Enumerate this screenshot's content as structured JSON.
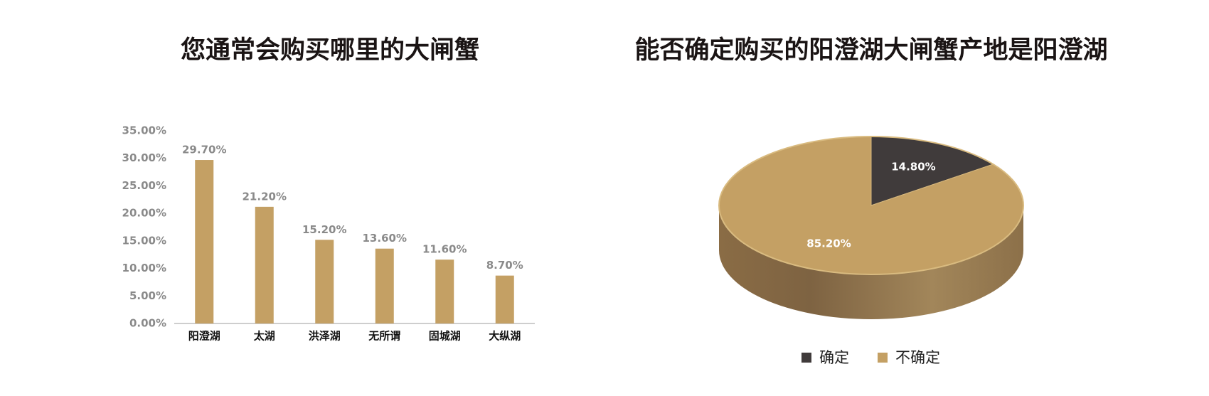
{
  "chart_data": [
    {
      "type": "bar",
      "title": "您通常会购买哪里的大闸蟹",
      "categories": [
        "阳澄湖",
        "太湖",
        "洪泽湖",
        "无所谓",
        "固城湖",
        "大纵湖"
      ],
      "values": [
        29.7,
        21.2,
        15.2,
        13.6,
        11.6,
        8.7
      ],
      "value_labels": [
        "29.70%",
        "21.20%",
        "15.20%",
        "13.60%",
        "11.60%",
        "8.70%"
      ],
      "color": "#c4a064",
      "ylim": [
        0,
        35
      ],
      "yticks": [
        {
          "value": 0,
          "label": "0.00%"
        },
        {
          "value": 5,
          "label": "5.00%"
        },
        {
          "value": 10,
          "label": "10.00%"
        },
        {
          "value": 15,
          "label": "15.00%"
        },
        {
          "value": 20,
          "label": "20.00%"
        },
        {
          "value": 25,
          "label": "25.00%"
        },
        {
          "value": 30,
          "label": "30.00%"
        },
        {
          "value": 35,
          "label": "35.00%"
        }
      ],
      "grid": false
    },
    {
      "type": "pie",
      "title": "能否确定购买的阳澄湖大闸蟹产地是阳澄湖",
      "categories": [
        "确定",
        "不确定"
      ],
      "values": [
        14.8,
        85.2
      ],
      "value_labels": [
        "14.80%",
        "85.20%"
      ],
      "colors": [
        "#403b3b",
        "#c4a064"
      ],
      "legend": "bottom"
    }
  ]
}
